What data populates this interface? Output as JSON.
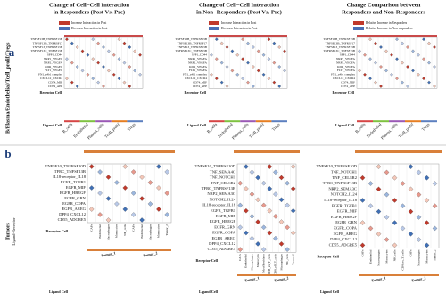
{
  "panel_a": {
    "label": "a",
    "side_label": "B/Plasma/Endothelial/Tcell_prolif/Tregs",
    "subpanels": [
      {
        "title_lines": [
          "Change of Cell−Cell Interaction",
          "in Responders (Post Vs. Pre)"
        ],
        "legend": [
          "Increase Interaction in Post",
          "Decrease Interaction in Post"
        ],
        "rows": [
          "TNFSF13B_TNFRSF13B",
          "TNFSF13B_TNFRSF17",
          "TNFSF13_TNFRSF13B",
          "TNFRSF13C_TNFSF13B",
          "SPP1_CD44",
          "NRP1_VEGFA",
          "NRP2_VEGFA",
          "KDR_VEGFA",
          "FLT1_VEGFA",
          "FN1_a4b1 complex",
          "CXCL12_CXCR4",
          "CD74_MIF",
          "CD74_APP"
        ],
        "receptor_axis": "Receptor Cell",
        "ligand_axis": "Ligand Cell",
        "groups": [
          "B_cells",
          "Endothelial",
          "Plasma_cells",
          "Tcell_prolif",
          "Tregs"
        ]
      },
      {
        "title_lines": [
          "Change of Cell−Cell Interaction",
          "in Non−Responders (Post Vs. Pre)"
        ],
        "legend": [
          "Increase Interaction in Post",
          "Decrease Interaction in Post"
        ],
        "rows": [
          "TNFSF13B_TNFRSF13B",
          "TNFSF13B_TNFRSF17",
          "TNFSF13_TNFRSF13B",
          "TNFRSF13C_TNFSF13B",
          "SPP1_CD44",
          "NRP1_VEGFA",
          "NRP2_VEGFA",
          "KDR_VEGFA",
          "FLT1_VEGFA",
          "FN1_a4b1 complex",
          "CXCL12_CXCR4",
          "CD74_MIF",
          "CD74_APP"
        ],
        "receptor_axis": "Receptor Cell",
        "ligand_axis": "Ligand Cell",
        "groups": [
          "B_cells",
          "Endothelial",
          "Plasma_cells",
          "Tcell_prolif",
          "Tregs"
        ]
      },
      {
        "title_lines": [
          "Change Comparison between",
          "Responders and Non-Responders"
        ],
        "legend": [
          "Relative Increase in Responders",
          "Relative Increase in Non-responders"
        ],
        "rows": [
          "TNFSF13B_TNFRSF13B",
          "TNFSF13B_TNFRSF17",
          "TNFSF13_TNFRSF13B",
          "TNFRSF13C_TNFSF13B",
          "SPP1_CD44",
          "NRP1_VEGFA",
          "NRP2_VEGFA",
          "KDR_VEGFA",
          "FLT1_VEGFA",
          "FN1_a4b1 complex",
          "CXCL12_CXCR4",
          "CD74_MIF",
          "CD74_APP"
        ],
        "receptor_axis": "Receptor Cell",
        "ligand_axis": "Ligand Cell",
        "groups": [
          "B_cells",
          "Endothelial",
          "Plasma_cells",
          "Tcell_prolif",
          "Tregs"
        ]
      }
    ]
  },
  "panel_b": {
    "label": "b",
    "side_label": "Tumors",
    "side_sublabel": "Ligand-Receptor",
    "subpanels": [
      {
        "rows": [
          "TNFSF10_TNFRSF10D",
          "TFRC_TNFSF13B",
          "IL18-receptor_IL18",
          "EGFR_TGFB1",
          "EGFR_MIF",
          "EGFR_HBEGF",
          "EGFR_GRN",
          "EGFR_COPA",
          "EGFR_AREG",
          "DPP4_CXCL12",
          "CD55_ADGRE5"
        ],
        "receptor_cells": [
          "CAFs",
          "Endothelial",
          "Macrophages",
          "Monocytes",
          "NK_cells",
          "CAFs",
          "Endothelial",
          "Macrophages",
          "Monocytes",
          "Tumor_2"
        ],
        "receptor_axis": "Receptor Cell",
        "ligand_axis": "Ligand Cell",
        "groups": [
          "Tumor_1",
          "Tumor_2"
        ]
      },
      {
        "rows": [
          "TNFSF10_TNFRSF10D",
          "TNF_SEMA4C",
          "TNF_NOTCH1",
          "TNF_CELSR2",
          "TFRC_TNFRSF13B",
          "NRP2_SEMA3C",
          "NOTCH2_IL24",
          "IL18-receptor_IL18",
          "EGFR_TGFB1",
          "EGFR_MIF",
          "EGFR_HBEGF",
          "EGFR_GRN",
          "EGFR_COPA",
          "EGFR_AREG",
          "DPP4_CXCL12",
          "CD55_ADGRE5"
        ],
        "receptor_cells": [
          "CAFs",
          "Endothelial",
          "Macrophages",
          "Monocytes",
          "Myofibroblasts",
          "CD8_ex_T_cells",
          "CD8_eff_T_cells",
          "Macrophages",
          "NK_cells",
          "Tumor_2"
        ],
        "receptor_axis": "Receptor Cell",
        "ligand_axis": "Ligand Cell",
        "groups": [
          "Tumor_1",
          "Tumor_2"
        ]
      },
      {
        "rows": [
          "TNFSF10_TNFRSF10D",
          "TNF_NOTCH1",
          "TNF_CELSR2",
          "TFRC_TNFRSF13B",
          "NRP2_SEMA3C",
          "NOTCH2_IL24",
          "IL18-receptor_IL18",
          "EGFR_TGFB1",
          "EGFR_MIF",
          "EGFR_HBEGF",
          "EGFR_GRN",
          "EGFR_COPA",
          "EGFR_AREG",
          "DPP4_CXCL12",
          "CD55_ADGRE5"
        ],
        "receptor_cells": [
          "CAFs",
          "Endothelial",
          "Macrophages",
          "Monocytes",
          "NK_cells",
          "CD8_ex_T_cells",
          "CAFs",
          "Macrophages",
          "Monocytes",
          "Tumor_2"
        ],
        "receptor_axis": "Receptor Cell",
        "ligand_axis": "Ligand Cell",
        "groups": [
          "Tumor_1",
          "Tumor_2"
        ]
      }
    ]
  }
}
